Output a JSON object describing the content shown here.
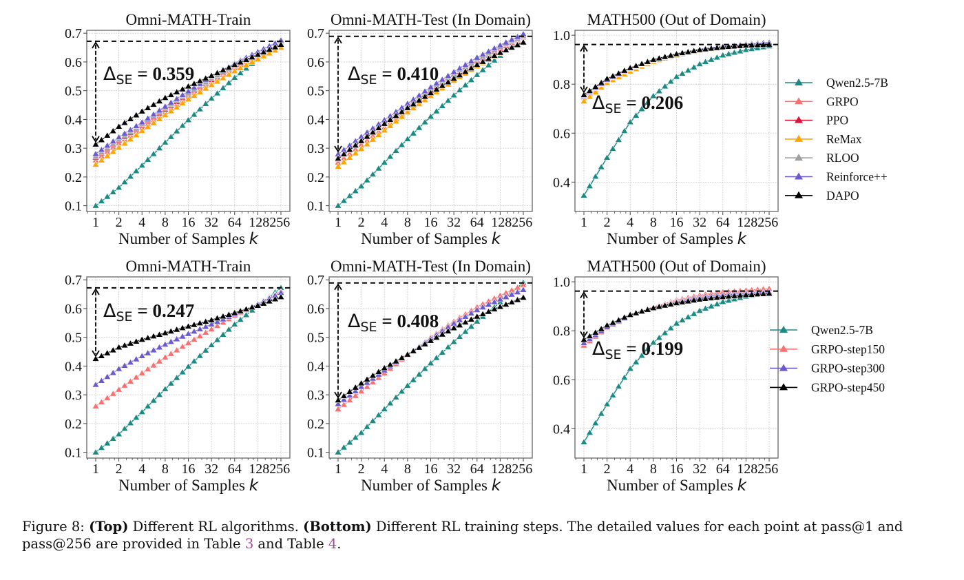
{
  "figure": {
    "caption": {
      "label": "Figure 8:",
      "top_bold": "(Top)",
      "top_text": " Different RL algorithms. ",
      "bottom_bold": "(Bottom)",
      "bottom_text": " Different RL training steps. The detailed values for each point at pass@1 and pass@256 are provided in Table ",
      "ref1": "3",
      "mid": " and Table ",
      "ref2": "4",
      "end": "."
    }
  },
  "chart_data": [
    {
      "type": "line",
      "row": "top",
      "title": "Omni-MATH-Train",
      "xlabel": "Number of Samples k",
      "ylabel": "",
      "xscale": "log2",
      "xticks": [
        "1",
        "2",
        "4",
        "8",
        "16",
        "32",
        "64",
        "128256"
      ],
      "x_tick_values": [
        1,
        2,
        4,
        8,
        16,
        32,
        64,
        128,
        256
      ],
      "yticks": [
        "0.1",
        "0.2",
        "0.3",
        "0.4",
        "0.5",
        "0.6",
        "0.7"
      ],
      "ylim": [
        0.08,
        0.71
      ],
      "grid": true,
      "reference_line": 0.672,
      "annotation": {
        "label": "Δ",
        "sub": "SE",
        "value": "= 0.359",
        "from": 0.313,
        "to": 0.672
      },
      "series": [
        {
          "name": "Qwen2.5-7B",
          "color": "#1b8a83",
          "anchors": [
            0.1,
            0.163,
            0.24,
            0.32,
            0.398,
            0.473,
            0.545,
            0.61,
            0.668
          ]
        },
        {
          "name": "GRPO",
          "color": "#f87171",
          "anchors": [
            0.258,
            0.318,
            0.37,
            0.425,
            0.478,
            0.53,
            0.58,
            0.62,
            0.66
          ]
        },
        {
          "name": "PPO",
          "color": "#dc143c",
          "anchors": [
            0.268,
            0.326,
            0.38,
            0.435,
            0.488,
            0.538,
            0.585,
            0.625,
            0.662
          ]
        },
        {
          "name": "ReMax",
          "color": "#ffa500",
          "anchors": [
            0.243,
            0.302,
            0.36,
            0.415,
            0.47,
            0.52,
            0.568,
            0.61,
            0.65
          ]
        },
        {
          "name": "RLOO",
          "color": "#a0a0a0",
          "anchors": [
            0.272,
            0.33,
            0.384,
            0.44,
            0.492,
            0.542,
            0.588,
            0.628,
            0.664
          ]
        },
        {
          "name": "Reinforce++",
          "color": "#6a5acd",
          "anchors": [
            0.28,
            0.338,
            0.39,
            0.445,
            0.498,
            0.55,
            0.595,
            0.635,
            0.675
          ]
        },
        {
          "name": "DAPO",
          "color": "#000000",
          "anchors": [
            0.313,
            0.375,
            0.428,
            0.475,
            0.515,
            0.552,
            0.59,
            0.625,
            0.66
          ]
        }
      ]
    },
    {
      "type": "line",
      "row": "top",
      "title": "Omni-MATH-Test (In Domain)",
      "xlabel": "Number of Samples k",
      "xscale": "log2",
      "xticks": [
        "1",
        "2",
        "4",
        "8",
        "16",
        "32",
        "64",
        "128256"
      ],
      "yticks": [
        "0.1",
        "0.2",
        "0.3",
        "0.4",
        "0.5",
        "0.6",
        "0.7"
      ],
      "ylim": [
        0.08,
        0.71
      ],
      "grid": true,
      "reference_line": 0.689,
      "annotation": {
        "label": "Δ",
        "sub": "SE",
        "value": "= 0.410",
        "from": 0.279,
        "to": 0.689
      },
      "series": [
        {
          "name": "Qwen2.5-7B",
          "color": "#1b8a83",
          "anchors": [
            0.1,
            0.168,
            0.25,
            0.332,
            0.41,
            0.484,
            0.555,
            0.622,
            0.69
          ]
        },
        {
          "name": "GRPO",
          "color": "#f87171",
          "anchors": [
            0.25,
            0.312,
            0.372,
            0.432,
            0.492,
            0.548,
            0.6,
            0.645,
            0.685
          ]
        },
        {
          "name": "PPO",
          "color": "#dc143c",
          "anchors": [
            0.262,
            0.325,
            0.385,
            0.443,
            0.5,
            0.555,
            0.605,
            0.648,
            0.688
          ]
        },
        {
          "name": "ReMax",
          "color": "#ffa500",
          "anchors": [
            0.236,
            0.298,
            0.362,
            0.425,
            0.482,
            0.535,
            0.585,
            0.63,
            0.67
          ]
        },
        {
          "name": "RLOO",
          "color": "#a0a0a0",
          "anchors": [
            0.268,
            0.33,
            0.39,
            0.448,
            0.505,
            0.558,
            0.608,
            0.652,
            0.69
          ]
        },
        {
          "name": "Reinforce++",
          "color": "#6a5acd",
          "anchors": [
            0.279,
            0.34,
            0.398,
            0.455,
            0.512,
            0.565,
            0.615,
            0.658,
            0.697
          ]
        },
        {
          "name": "DAPO",
          "color": "#000000",
          "anchors": [
            0.264,
            0.325,
            0.385,
            0.44,
            0.492,
            0.542,
            0.59,
            0.632,
            0.668
          ]
        }
      ]
    },
    {
      "type": "line",
      "row": "top",
      "title": "MATH500 (Out of Domain)",
      "xlabel": "Number of Samples k",
      "xscale": "log2",
      "xticks": [
        "1",
        "2",
        "4",
        "8",
        "16",
        "32",
        "64",
        "128256"
      ],
      "yticks": [
        "0.4",
        "0.6",
        "0.8",
        "1.0"
      ],
      "ylim": [
        0.28,
        1.02
      ],
      "grid": true,
      "reference_line": 0.962,
      "annotation": {
        "label": "Δ",
        "sub": "SE",
        "value": "= 0.206",
        "from": 0.756,
        "to": 0.962
      },
      "series": [
        {
          "name": "Qwen2.5-7B",
          "color": "#1b8a83",
          "anchors": [
            0.345,
            0.5,
            0.645,
            0.752,
            0.83,
            0.882,
            0.918,
            0.94,
            0.955
          ]
        },
        {
          "name": "GRPO",
          "color": "#f87171",
          "anchors": [
            0.745,
            0.812,
            0.858,
            0.895,
            0.92,
            0.94,
            0.952,
            0.96,
            0.965
          ]
        },
        {
          "name": "PPO",
          "color": "#dc143c",
          "anchors": [
            0.748,
            0.814,
            0.86,
            0.896,
            0.921,
            0.94,
            0.952,
            0.96,
            0.965
          ]
        },
        {
          "name": "ReMax",
          "color": "#ffa500",
          "anchors": [
            0.73,
            0.805,
            0.852,
            0.892,
            0.918,
            0.938,
            0.95,
            0.958,
            0.963
          ]
        },
        {
          "name": "RLOO",
          "color": "#a0a0a0",
          "anchors": [
            0.75,
            0.816,
            0.862,
            0.897,
            0.922,
            0.941,
            0.953,
            0.961,
            0.966
          ]
        },
        {
          "name": "Reinforce++",
          "color": "#6a5acd",
          "anchors": [
            0.752,
            0.818,
            0.864,
            0.899,
            0.924,
            0.943,
            0.955,
            0.963,
            0.97
          ]
        },
        {
          "name": "DAPO",
          "color": "#000000",
          "anchors": [
            0.756,
            0.822,
            0.866,
            0.9,
            0.923,
            0.94,
            0.951,
            0.958,
            0.962
          ]
        }
      ]
    },
    {
      "type": "line",
      "row": "bottom",
      "title": "Omni-MATH-Train",
      "xlabel": "Number of Samples k",
      "xscale": "log2",
      "xticks": [
        "1",
        "2",
        "4",
        "8",
        "16",
        "32",
        "64",
        "128256"
      ],
      "yticks": [
        "0.1",
        "0.2",
        "0.3",
        "0.4",
        "0.5",
        "0.6",
        "0.7"
      ],
      "ylim": [
        0.08,
        0.71
      ],
      "grid": true,
      "reference_line": 0.672,
      "annotation": {
        "label": "Δ",
        "sub": "SE",
        "value": "= 0.247",
        "from": 0.425,
        "to": 0.672
      },
      "series": [
        {
          "name": "Qwen2.5-7B",
          "color": "#1b8a83",
          "anchors": [
            0.1,
            0.163,
            0.24,
            0.32,
            0.398,
            0.473,
            0.545,
            0.61,
            0.672
          ]
        },
        {
          "name": "GRPO-step150",
          "color": "#f87171",
          "anchors": [
            0.26,
            0.318,
            0.375,
            0.43,
            0.48,
            0.528,
            0.575,
            0.615,
            0.66
          ]
        },
        {
          "name": "GRPO-step300",
          "color": "#6a5acd",
          "anchors": [
            0.335,
            0.39,
            0.435,
            0.475,
            0.512,
            0.545,
            0.58,
            0.615,
            0.655
          ]
        },
        {
          "name": "GRPO-step450",
          "color": "#000000",
          "anchors": [
            0.425,
            0.465,
            0.492,
            0.515,
            0.538,
            0.56,
            0.585,
            0.61,
            0.64
          ]
        }
      ]
    },
    {
      "type": "line",
      "row": "bottom",
      "title": "Omni-MATH-Test (In Domain)",
      "xlabel": "Number of Samples k",
      "xscale": "log2",
      "xticks": [
        "1",
        "2",
        "4",
        "8",
        "16",
        "32",
        "64",
        "128256"
      ],
      "yticks": [
        "0.1",
        "0.2",
        "0.3",
        "0.4",
        "0.5",
        "0.6",
        "0.7"
      ],
      "ylim": [
        0.08,
        0.71
      ],
      "grid": true,
      "reference_line": 0.689,
      "annotation": {
        "label": "Δ",
        "sub": "SE",
        "value": "= 0.408",
        "from": 0.281,
        "to": 0.689
      },
      "series": [
        {
          "name": "Qwen2.5-7B",
          "color": "#1b8a83",
          "anchors": [
            0.1,
            0.168,
            0.25,
            0.332,
            0.41,
            0.484,
            0.555,
            0.622,
            0.69
          ]
        },
        {
          "name": "GRPO-step150",
          "color": "#f87171",
          "anchors": [
            0.25,
            0.312,
            0.375,
            0.438,
            0.5,
            0.555,
            0.605,
            0.645,
            0.682
          ]
        },
        {
          "name": "GRPO-step300",
          "color": "#6a5acd",
          "anchors": [
            0.268,
            0.328,
            0.385,
            0.44,
            0.495,
            0.548,
            0.595,
            0.632,
            0.665
          ]
        },
        {
          "name": "GRPO-step450",
          "color": "#000000",
          "anchors": [
            0.281,
            0.34,
            0.393,
            0.44,
            0.488,
            0.532,
            0.572,
            0.606,
            0.638
          ]
        }
      ]
    },
    {
      "type": "line",
      "row": "bottom",
      "title": "MATH500 (Out of Domain)",
      "xlabel": "Number of Samples k",
      "xscale": "log2",
      "xticks": [
        "1",
        "2",
        "4",
        "8",
        "16",
        "32",
        "64",
        "128256"
      ],
      "yticks": [
        "0.4",
        "0.6",
        "0.8",
        "1.0"
      ],
      "ylim": [
        0.28,
        1.02
      ],
      "grid": true,
      "reference_line": 0.962,
      "annotation": {
        "label": "Δ",
        "sub": "SE",
        "value": "= 0.199",
        "from": 0.763,
        "to": 0.962
      },
      "series": [
        {
          "name": "Qwen2.5-7B",
          "color": "#1b8a83",
          "anchors": [
            0.345,
            0.5,
            0.645,
            0.752,
            0.83,
            0.882,
            0.918,
            0.94,
            0.955
          ]
        },
        {
          "name": "GRPO-step150",
          "color": "#f87171",
          "anchors": [
            0.74,
            0.812,
            0.862,
            0.898,
            0.925,
            0.945,
            0.958,
            0.965,
            0.972
          ]
        },
        {
          "name": "GRPO-step300",
          "color": "#6a5acd",
          "anchors": [
            0.75,
            0.815,
            0.863,
            0.895,
            0.918,
            0.935,
            0.946,
            0.953,
            0.958
          ]
        },
        {
          "name": "GRPO-step450",
          "color": "#000000",
          "anchors": [
            0.763,
            0.822,
            0.865,
            0.893,
            0.913,
            0.928,
            0.938,
            0.946,
            0.952
          ]
        }
      ]
    }
  ],
  "legends": [
    {
      "row": "top",
      "placement": "right",
      "entries": [
        "Qwen2.5-7B",
        "GRPO",
        "PPO",
        "ReMax",
        "RLOO",
        "Reinforce++",
        "DAPO"
      ]
    },
    {
      "row": "bottom",
      "placement": "right",
      "entries": [
        "Qwen2.5-7B",
        "GRPO-step150",
        "GRPO-step300",
        "GRPO-step450"
      ]
    }
  ]
}
